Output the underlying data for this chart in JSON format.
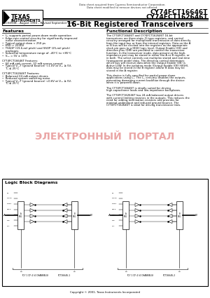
{
  "title_part1": "CY74FCT16646T",
  "title_part2": "CY74FCT162646T",
  "subtitle": "16-Bit Registered Transceivers",
  "doc_note1": "Data sheet acquired from Cypress Semiconductor Corporation.",
  "doc_note2": "Data sheet modified to remove devices not offered.",
  "doc_id": "SCCS090B – August 1994 – Revised September 2001",
  "features_title": "Features",
  "features": [
    "•  I₀₀ supports partial power-down mode operation",
    "•  Edge-rate control circuitry for significantly improved",
    "    noise characterization",
    "•  Typical output skew < 250 ps",
    "•  ESD > 2000V",
    "•  TSSOP (19.6-mil pitch) and SSOP (25-mil pitch)",
    "    packages",
    "•  Industrial temperature range of –40°C to +85°C",
    "•  Vₒₓ = 5V ± 10%",
    "",
    "CY74FCT16646T Features:",
    "•  64 mA sink current, 32 mA source current",
    "•  Typical VₒₓT (ground bounce) <1.0V at Vₒₓ ≥ 5V,",
    "    Tₐ ≤ 25°C",
    "",
    "CY74FCT162646T Features:",
    "•  Balanced 24 mA output drivers",
    "•  Reduced system switching noise",
    "•  Typical VₒₓT (ground bounce) <0.6V at Vₒₓ ≥ 5V,",
    "    Tₐ ≤ 25°C"
  ],
  "func_desc_title": "Functional Description",
  "func_desc": [
    "The CY74FCT16646T and CY74FCT162646T 16-bit",
    "transceivers are three-state, D-type registers, and control",
    "circuitry arranged for multiplexed transmission of data directly",
    "from the input bus or from the internal registers. Data on the A",
    "or B bus will be clocked into the registers as the appropriate",
    "clock pin goes to a HIGH logic level. Output Enable (OE) and",
    "direction pins (DIR) are provided to control the transceiver",
    "function. In the transceiver mode, data present at the high-",
    "impedance port may be stored in either the A or B register, or",
    "in both. The select controls can multiplex stored and real-time",
    "(transparent mode) data. The direction control determines",
    "which bus will receive data when the Output Enable (OE) is",
    "Active LOW. In the isolation mode (Output Enable (OE) HIGH),",
    "data may be stored in the B register and/or B data may be",
    "stored in the A register.",
    "",
    "This device is fully specified for partial-power-down",
    "applications using I₀₀. The I₀₀ circuitry disables the outputs,",
    "preventing damaging current backflow through the device",
    "when it is powered down.",
    "",
    "The CY74FCT16646T is ideally suited for driving",
    "high-capacitance loads and low-impedance backplanes.",
    "",
    "The CY74FCT162646T has 24-mA balanced output drivers",
    "with current limiting resistors in the outputs. This reduces the",
    "need for adding termination resistors and provides for",
    "minimal undershoot and reduced ground bounce. The",
    "CY74FCT162646T is ideal for driving transmission lines."
  ],
  "logic_block_title": "Logic Block Diagrams",
  "logic_label1": "TCY 1 OF 4 (4 CHANNELS)",
  "logic_code1": "FCT16646-1",
  "logic_label2": "TCY 1 OF 4 (4 CHANNELS)",
  "logic_code2": "FCT16646-2",
  "copyright": "Copyright © 2001, Texas Instruments Incorporated",
  "watermark": "ЭЛЕКТРОННЫЙ  ПОРТАЛ",
  "bg_color": "#ffffff",
  "text_color": "#000000"
}
